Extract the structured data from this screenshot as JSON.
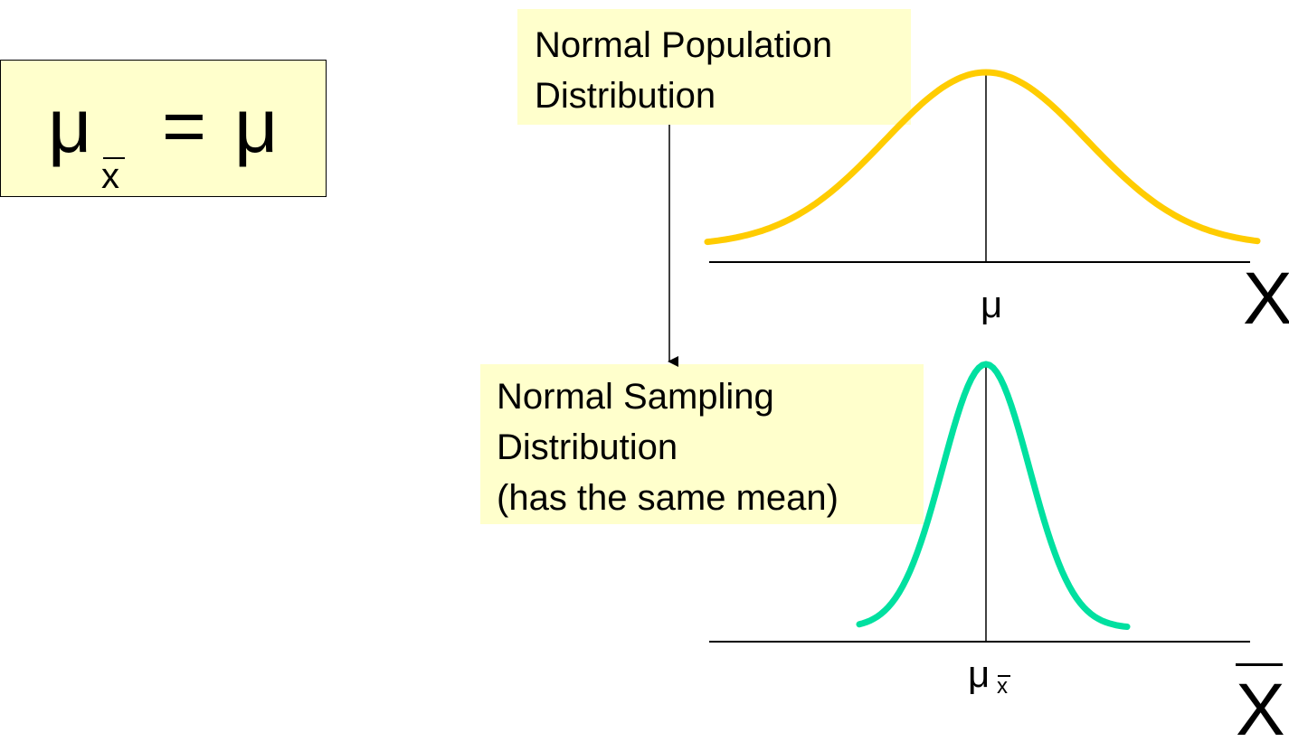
{
  "formula": {
    "lhs_symbol": "μ",
    "lhs_subscript": "x",
    "equals": "=",
    "rhs_symbol": "μ"
  },
  "population_box": {
    "line1": "Normal Population",
    "line2": "Distribution"
  },
  "sampling_box": {
    "line1": "Normal Sampling",
    "line2": "Distribution",
    "line3": "(has the same mean)"
  },
  "top_axis": {
    "center_label": "μ",
    "variable_label": "X"
  },
  "bottom_axis": {
    "center_label": "μ",
    "center_subscript": "x",
    "variable_label": "X"
  },
  "colors": {
    "box_fill": "#ffffcc",
    "population_curve": "#ffcc00",
    "sampling_curve": "#00e0a0"
  }
}
